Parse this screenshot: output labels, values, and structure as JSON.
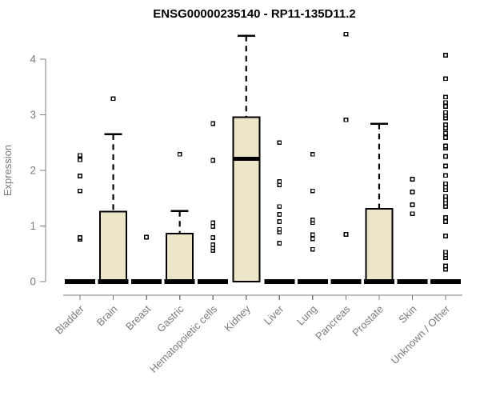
{
  "chart_data": {
    "type": "boxplot",
    "title": "ENSG00000235140 - RP11-135D11.2",
    "ylabel": "Expression",
    "xlabel": "",
    "ylim": [
      0,
      4.6
    ],
    "yticks": [
      0,
      1,
      2,
      3,
      4
    ],
    "legend": "none",
    "grid": false,
    "box_fill_color": "#ede5c8",
    "box_stroke_color": "#000000",
    "axis_color": "#7d7d7d",
    "tick_label_color": "#7b7b7b",
    "title_color": "#000000",
    "categories": [
      "Bladder",
      "Brain",
      "Breast",
      "Gastric",
      "Hematopoietic cells",
      "Kidney",
      "Liver",
      "Lung",
      "Pancreas",
      "Prostate",
      "Skin",
      "Unknown / Other"
    ],
    "boxes": [
      {
        "category": "Bladder",
        "min": 0,
        "q1": 0,
        "median": 0,
        "q3": 0,
        "whisker_high": 0,
        "outliers": [
          0.76,
          0.79,
          1.63,
          1.9,
          2.19,
          2.27
        ]
      },
      {
        "category": "Brain",
        "min": 0,
        "q1": 0,
        "median": 0,
        "q3": 1.26,
        "whisker_high": 2.65,
        "outliers": [
          3.29
        ]
      },
      {
        "category": "Breast",
        "min": 0,
        "q1": 0,
        "median": 0,
        "q3": 0,
        "whisker_high": 0,
        "outliers": [
          0.8
        ]
      },
      {
        "category": "Gastric",
        "min": 0,
        "q1": 0,
        "median": 0,
        "q3": 0.86,
        "whisker_high": 1.27,
        "outliers": [
          2.29
        ]
      },
      {
        "category": "Hematopoietic cells",
        "min": 0,
        "q1": 0,
        "median": 0,
        "q3": 0,
        "whisker_high": 0,
        "outliers": [
          0.56,
          0.61,
          0.66,
          0.79,
          0.99,
          1.06,
          2.18,
          2.84
        ]
      },
      {
        "category": "Kidney",
        "min": 0,
        "q1": 0,
        "median": 2.21,
        "q3": 2.96,
        "whisker_high": 4.42,
        "outliers": []
      },
      {
        "category": "Liver",
        "min": 0,
        "q1": 0,
        "median": 0,
        "q3": 0,
        "whisker_high": 0,
        "outliers": [
          0.69,
          0.89,
          0.94,
          1.08,
          1.21,
          1.35,
          1.74,
          1.8,
          2.5
        ]
      },
      {
        "category": "Lung",
        "min": 0,
        "q1": 0,
        "median": 0,
        "q3": 0,
        "whisker_high": 0,
        "outliers": [
          0.58,
          0.77,
          0.84,
          1.06,
          1.11,
          1.63,
          2.29
        ]
      },
      {
        "category": "Pancreas",
        "min": 0,
        "q1": 0,
        "median": 0,
        "q3": 0,
        "whisker_high": 0,
        "outliers": [
          0.85,
          2.91,
          4.45
        ]
      },
      {
        "category": "Prostate",
        "min": 0,
        "q1": 0,
        "median": 0,
        "q3": 1.31,
        "whisker_high": 2.84,
        "outliers": []
      },
      {
        "category": "Skin",
        "min": 0,
        "q1": 0,
        "median": 0,
        "q3": 0,
        "whisker_high": 0,
        "outliers": [
          1.22,
          1.38,
          1.61,
          1.84
        ]
      },
      {
        "category": "Unknown / Other",
        "min": 0,
        "q1": 0,
        "median": 0,
        "q3": 0,
        "whisker_high": 0,
        "outliers": [
          0.22,
          0.28,
          0.43,
          0.48,
          0.53,
          0.82,
          1.08,
          1.15,
          1.35,
          1.41,
          1.47,
          1.53,
          1.65,
          1.7,
          1.76,
          1.91,
          2.08,
          2.25,
          2.4,
          2.44,
          2.59,
          2.67,
          2.76,
          2.82,
          2.94,
          2.99,
          3.04,
          3.15,
          3.22,
          3.32,
          3.65,
          4.07
        ]
      }
    ]
  }
}
